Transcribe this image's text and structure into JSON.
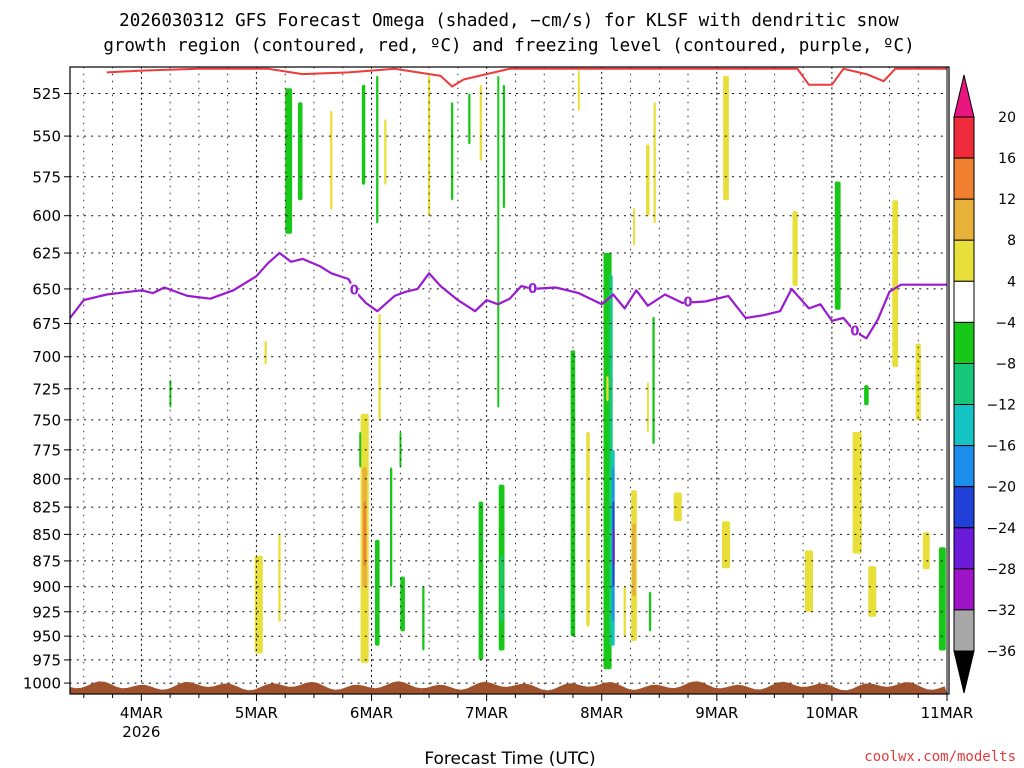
{
  "chart_data": {
    "type": "heatmap",
    "title_lines": [
      "2026030312 GFS Forecast Omega (shaded, −cm/s) for KLSF with dendritic snow",
      "growth region (contoured, red, ºC) and freezing level (contoured, purple, ºC)"
    ],
    "xlabel": "Forecast Time (UTC)",
    "credit": "coolwx.com/modelts",
    "x_ticks": [
      {
        "day": 1,
        "label": "4MAR",
        "sub": "2026"
      },
      {
        "day": 2,
        "label": "5MAR",
        "sub": ""
      },
      {
        "day": 3,
        "label": "6MAR",
        "sub": ""
      },
      {
        "day": 4,
        "label": "7MAR",
        "sub": ""
      },
      {
        "day": 5,
        "label": "8MAR",
        "sub": ""
      },
      {
        "day": 6,
        "label": "9MAR",
        "sub": ""
      },
      {
        "day": 7,
        "label": "10MAR",
        "sub": ""
      },
      {
        "day": 8,
        "label": "11MAR",
        "sub": ""
      }
    ],
    "xlim": [
      0.38,
      8.0
    ],
    "y_ticks": [
      525,
      550,
      575,
      600,
      625,
      650,
      675,
      700,
      725,
      750,
      775,
      800,
      825,
      850,
      875,
      900,
      925,
      950,
      975,
      1000
    ],
    "y_tick_labels": [
      "525",
      "550",
      "575",
      "600",
      "625",
      "650",
      "675",
      "700",
      "725",
      "750",
      "775",
      "800",
      "825",
      "850",
      "875",
      "900",
      "925",
      "950",
      "975",
      "1000"
    ],
    "ylim": [
      510,
      1012
    ],
    "y_scale": "log",
    "grid": true,
    "colorbar": {
      "labels": [
        "20",
        "16",
        "12",
        "8",
        "4",
        "−4",
        "−8",
        "−12",
        "−16",
        "−20",
        "−24",
        "−28",
        "−32",
        "−36"
      ],
      "colors": [
        "#ef2a3b",
        "#f08030",
        "#e8b13a",
        "#e8df3a",
        "#ffffff",
        "#18c818",
        "#18c87a",
        "#14c4c4",
        "#1a8eea",
        "#2040d8",
        "#6a1ad8",
        "#a014c8",
        "#a8a8a8"
      ],
      "top_arrow_color": "#e8167e",
      "bottom_arrow_color": "#000000"
    },
    "freezing_level": {
      "label": "0",
      "color": "#9a1ad1",
      "points": [
        [
          0.38,
          671
        ],
        [
          0.5,
          658
        ],
        [
          0.7,
          654
        ],
        [
          1.0,
          651
        ],
        [
          1.1,
          653
        ],
        [
          1.2,
          649
        ],
        [
          1.4,
          655
        ],
        [
          1.6,
          657
        ],
        [
          1.8,
          651
        ],
        [
          2.0,
          641
        ],
        [
          2.1,
          632
        ],
        [
          2.2,
          625
        ],
        [
          2.3,
          631
        ],
        [
          2.4,
          629
        ],
        [
          2.55,
          634
        ],
        [
          2.65,
          639
        ],
        [
          2.8,
          643
        ],
        [
          2.85,
          651
        ],
        [
          2.95,
          660
        ],
        [
          3.05,
          666
        ],
        [
          3.2,
          655
        ],
        [
          3.3,
          652
        ],
        [
          3.4,
          650
        ],
        [
          3.5,
          639
        ],
        [
          3.6,
          648
        ],
        [
          3.75,
          658
        ],
        [
          3.9,
          666
        ],
        [
          4.0,
          658
        ],
        [
          4.1,
          661
        ],
        [
          4.2,
          657
        ],
        [
          4.3,
          648
        ],
        [
          4.4,
          650
        ],
        [
          4.6,
          649
        ],
        [
          4.8,
          653
        ],
        [
          5.0,
          661
        ],
        [
          5.1,
          654
        ],
        [
          5.2,
          664
        ],
        [
          5.3,
          651
        ],
        [
          5.4,
          662
        ],
        [
          5.55,
          654
        ],
        [
          5.7,
          660
        ],
        [
          5.9,
          659
        ],
        [
          6.1,
          655
        ],
        [
          6.25,
          671
        ],
        [
          6.4,
          669
        ],
        [
          6.55,
          666
        ],
        [
          6.65,
          650
        ],
        [
          6.8,
          664
        ],
        [
          6.9,
          661
        ],
        [
          7.0,
          673
        ],
        [
          7.1,
          671
        ],
        [
          7.2,
          681
        ],
        [
          7.3,
          686
        ],
        [
          7.4,
          672
        ],
        [
          7.5,
          652
        ],
        [
          7.6,
          647
        ],
        [
          8.0,
          647
        ]
      ]
    },
    "dendritic_top": {
      "color": "#ef3b3b",
      "points": [
        [
          0.7,
          513
        ],
        [
          1.0,
          512
        ],
        [
          1.5,
          511
        ],
        [
          2.1,
          511
        ],
        [
          2.4,
          514
        ],
        [
          2.8,
          513
        ],
        [
          3.0,
          512
        ],
        [
          3.2,
          511
        ],
        [
          3.6,
          515
        ],
        [
          3.7,
          521
        ],
        [
          3.8,
          517
        ],
        [
          4.0,
          514
        ],
        [
          4.2,
          511
        ],
        [
          6.7,
          511
        ],
        [
          6.8,
          520
        ],
        [
          7.0,
          520
        ],
        [
          7.1,
          511
        ],
        [
          7.3,
          514
        ],
        [
          7.45,
          518
        ],
        [
          7.55,
          511
        ],
        [
          8.0,
          511
        ]
      ]
    },
    "omega_cells": [
      {
        "day": 2.28,
        "p1": 522,
        "p2": 612,
        "w": 0.06,
        "c": "#18c818"
      },
      {
        "day": 2.38,
        "p1": 530,
        "p2": 590,
        "w": 0.04,
        "c": "#18c818"
      },
      {
        "day": 2.08,
        "p1": 688,
        "p2": 706,
        "w": 0.02,
        "c": "#e8df3a"
      },
      {
        "day": 2.65,
        "p1": 535,
        "p2": 596,
        "w": 0.02,
        "c": "#e8df3a"
      },
      {
        "day": 2.93,
        "p1": 520,
        "p2": 580,
        "w": 0.03,
        "c": "#18c818"
      },
      {
        "day": 3.05,
        "p1": 515,
        "p2": 605,
        "w": 0.02,
        "c": "#18c818"
      },
      {
        "day": 3.12,
        "p1": 540,
        "p2": 580,
        "w": 0.02,
        "c": "#e8df3a"
      },
      {
        "day": 3.5,
        "p1": 515,
        "p2": 600,
        "w": 0.02,
        "c": "#e8df3a"
      },
      {
        "day": 3.7,
        "p1": 530,
        "p2": 590,
        "w": 0.02,
        "c": "#18c818"
      },
      {
        "day": 3.85,
        "p1": 525,
        "p2": 555,
        "w": 0.02,
        "c": "#18c818"
      },
      {
        "day": 3.95,
        "p1": 520,
        "p2": 565,
        "w": 0.02,
        "c": "#e8df3a"
      },
      {
        "day": 4.1,
        "p1": 515,
        "p2": 740,
        "w": 0.015,
        "c": "#18c818"
      },
      {
        "day": 4.15,
        "p1": 520,
        "p2": 595,
        "w": 0.02,
        "c": "#18c818"
      },
      {
        "day": 4.8,
        "p1": 512,
        "p2": 535,
        "w": 0.015,
        "c": "#e8df3a"
      },
      {
        "day": 6.08,
        "p1": 515,
        "p2": 590,
        "w": 0.05,
        "c": "#e8df3a"
      },
      {
        "day": 5.4,
        "p1": 555,
        "p2": 600,
        "w": 0.03,
        "c": "#e8df3a"
      },
      {
        "day": 5.46,
        "p1": 530,
        "p2": 605,
        "w": 0.02,
        "c": "#e8df3a"
      },
      {
        "day": 5.28,
        "p1": 595,
        "p2": 620,
        "w": 0.015,
        "c": "#e8df3a"
      },
      {
        "day": 6.68,
        "p1": 597,
        "p2": 648,
        "w": 0.045,
        "c": "#e8df3a"
      },
      {
        "day": 7.05,
        "p1": 578,
        "p2": 665,
        "w": 0.05,
        "c": "#18c818"
      },
      {
        "day": 7.55,
        "p1": 590,
        "p2": 708,
        "w": 0.05,
        "c": "#e8df3a"
      },
      {
        "day": 7.75,
        "p1": 690,
        "p2": 750,
        "w": 0.045,
        "c": "#e8df3a"
      },
      {
        "day": 7.3,
        "p1": 722,
        "p2": 738,
        "w": 0.04,
        "c": "#18c818"
      },
      {
        "day": 1.25,
        "p1": 718,
        "p2": 740,
        "w": 0.012,
        "c": "#18c818"
      },
      {
        "day": 2.02,
        "p1": 870,
        "p2": 968,
        "w": 0.07,
        "c": "#e8df3a"
      },
      {
        "day": 2.2,
        "p1": 850,
        "p2": 935,
        "w": 0.02,
        "c": "#e8df3a"
      },
      {
        "day": 2.94,
        "p1": 745,
        "p2": 978,
        "w": 0.07,
        "c": "#e8df3a"
      },
      {
        "day": 2.94,
        "p1": 790,
        "p2": 900,
        "w": 0.04,
        "c": "#e8b13a"
      },
      {
        "day": 2.94,
        "p1": 820,
        "p2": 880,
        "w": 0.02,
        "c": "#f08030"
      },
      {
        "day": 3.07,
        "p1": 668,
        "p2": 750,
        "w": 0.02,
        "c": "#e8df3a"
      },
      {
        "day": 2.9,
        "p1": 760,
        "p2": 790,
        "w": 0.015,
        "c": "#18c818"
      },
      {
        "day": 3.05,
        "p1": 855,
        "p2": 960,
        "w": 0.04,
        "c": "#18c818"
      },
      {
        "day": 3.17,
        "p1": 790,
        "p2": 900,
        "w": 0.02,
        "c": "#18c818"
      },
      {
        "day": 3.27,
        "p1": 890,
        "p2": 945,
        "w": 0.04,
        "c": "#18c818"
      },
      {
        "day": 3.25,
        "p1": 760,
        "p2": 790,
        "w": 0.015,
        "c": "#18c818"
      },
      {
        "day": 3.45,
        "p1": 900,
        "p2": 965,
        "w": 0.02,
        "c": "#18c818"
      },
      {
        "day": 3.95,
        "p1": 820,
        "p2": 975,
        "w": 0.04,
        "c": "#18c818"
      },
      {
        "day": 4.13,
        "p1": 805,
        "p2": 965,
        "w": 0.05,
        "c": "#18c818"
      },
      {
        "day": 4.13,
        "p1": 870,
        "p2": 935,
        "w": 0.025,
        "c": "#18c87a"
      },
      {
        "day": 4.75,
        "p1": 695,
        "p2": 950,
        "w": 0.04,
        "c": "#18c818"
      },
      {
        "day": 4.88,
        "p1": 760,
        "p2": 940,
        "w": 0.03,
        "c": "#e8df3a"
      },
      {
        "day": 5.05,
        "p1": 625,
        "p2": 985,
        "w": 0.07,
        "c": "#18c818"
      },
      {
        "day": 5.08,
        "p1": 640,
        "p2": 960,
        "w": 0.03,
        "c": "#18c87a"
      },
      {
        "day": 5.1,
        "p1": 775,
        "p2": 960,
        "w": 0.025,
        "c": "#14c4c4"
      },
      {
        "day": 5.1,
        "p1": 790,
        "p2": 935,
        "w": 0.018,
        "c": "#1a8eea"
      },
      {
        "day": 5.1,
        "p1": 820,
        "p2": 900,
        "w": 0.012,
        "c": "#2040d8"
      },
      {
        "day": 5.1,
        "p1": 845,
        "p2": 880,
        "w": 0.01,
        "c": "#6a1ad8"
      },
      {
        "day": 5.28,
        "p1": 810,
        "p2": 955,
        "w": 0.05,
        "c": "#e8df3a"
      },
      {
        "day": 5.28,
        "p1": 840,
        "p2": 910,
        "w": 0.03,
        "c": "#e8b13a"
      },
      {
        "day": 5.2,
        "p1": 900,
        "p2": 950,
        "w": 0.02,
        "c": "#e8df3a"
      },
      {
        "day": 5.45,
        "p1": 670,
        "p2": 770,
        "w": 0.02,
        "c": "#18c818"
      },
      {
        "day": 5.4,
        "p1": 720,
        "p2": 760,
        "w": 0.015,
        "c": "#e8df3a"
      },
      {
        "day": 5.42,
        "p1": 905,
        "p2": 945,
        "w": 0.02,
        "c": "#18c818"
      },
      {
        "day": 5.05,
        "p1": 715,
        "p2": 735,
        "w": 0.02,
        "c": "#e8df3a"
      },
      {
        "day": 5.66,
        "p1": 812,
        "p2": 838,
        "w": 0.07,
        "c": "#e8df3a"
      },
      {
        "day": 6.08,
        "p1": 838,
        "p2": 882,
        "w": 0.07,
        "c": "#e8df3a"
      },
      {
        "day": 6.8,
        "p1": 865,
        "p2": 925,
        "w": 0.07,
        "c": "#e8df3a"
      },
      {
        "day": 7.22,
        "p1": 760,
        "p2": 868,
        "w": 0.08,
        "c": "#e8df3a"
      },
      {
        "day": 7.35,
        "p1": 880,
        "p2": 930,
        "w": 0.07,
        "c": "#e8df3a"
      },
      {
        "day": 7.82,
        "p1": 848,
        "p2": 883,
        "w": 0.06,
        "c": "#e8df3a"
      },
      {
        "day": 7.96,
        "p1": 862,
        "p2": 965,
        "w": 0.06,
        "c": "#18c818"
      }
    ]
  }
}
